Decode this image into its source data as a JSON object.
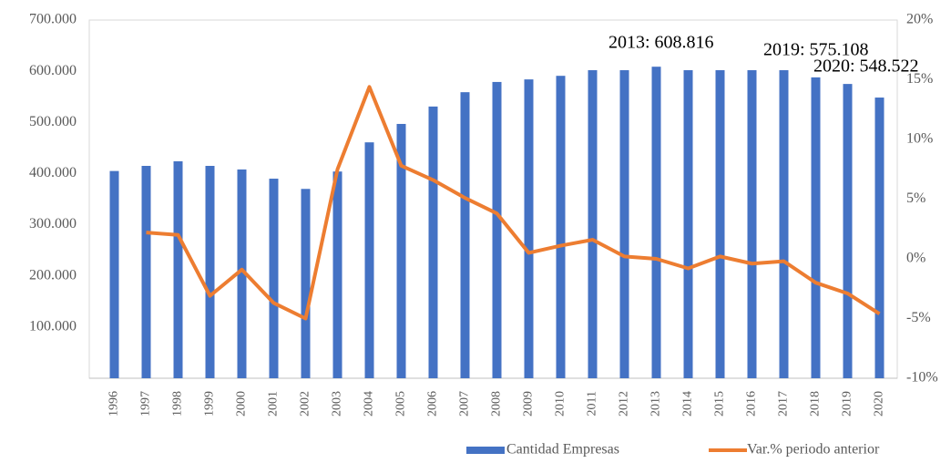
{
  "chart_data": {
    "type": "bar-line",
    "categories": [
      "1996",
      "1997",
      "1998",
      "1999",
      "2000",
      "2001",
      "2002",
      "2003",
      "2004",
      "2005",
      "2006",
      "2007",
      "2008",
      "2009",
      "2010",
      "2011",
      "2012",
      "2013",
      "2014",
      "2015",
      "2016",
      "2017",
      "2018",
      "2019",
      "2020"
    ],
    "series": [
      {
        "name": "Cantidad Empresas",
        "type": "bar",
        "color": "#4472c4",
        "values": [
          405000,
          415000,
          424000,
          415000,
          408000,
          390000,
          370000,
          404000,
          461000,
          497000,
          531000,
          559000,
          579000,
          584000,
          591000,
          602000,
          602000,
          608816,
          602000,
          602000,
          602000,
          602000,
          588000,
          575108,
          548522
        ]
      },
      {
        "name": "Var.% periodo anterior",
        "type": "line",
        "axis": "y2",
        "color": "#ed7d31",
        "values": [
          null,
          2.2,
          2.0,
          -3.1,
          -0.9,
          -3.7,
          -5.0,
          7.5,
          14.4,
          7.8,
          6.6,
          5.1,
          3.8,
          0.5,
          1.1,
          1.6,
          0.2,
          0.0,
          -0.8,
          0.2,
          -0.4,
          -0.2,
          -2.0,
          -2.9,
          -4.6
        ]
      }
    ],
    "annotations": [
      "2013: 608.816",
      "2019: 575.108",
      "2020: 548.522"
    ],
    "ylim": [
      0,
      700000
    ],
    "yticks": [
      {
        "value": 100000,
        "label": "100.000"
      },
      {
        "value": 200000,
        "label": "200.000"
      },
      {
        "value": 300000,
        "label": "300.000"
      },
      {
        "value": 400000,
        "label": "400.000"
      },
      {
        "value": 500000,
        "label": "500.000"
      },
      {
        "value": 600000,
        "label": "600.000"
      },
      {
        "value": 700000,
        "label": "700.000"
      }
    ],
    "y2lim": [
      -10,
      20
    ],
    "y2ticks": [
      {
        "value": -10,
        "label": "-10%"
      },
      {
        "value": -5,
        "label": "-5%"
      },
      {
        "value": 0,
        "label": "0%"
      },
      {
        "value": 5,
        "label": "5%"
      },
      {
        "value": 10,
        "label": "10%"
      },
      {
        "value": 15,
        "label": "15%"
      },
      {
        "value": 20,
        "label": "20%"
      }
    ],
    "legend": "bottom-right",
    "grid": false
  }
}
